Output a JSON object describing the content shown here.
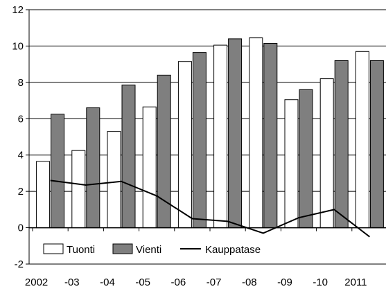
{
  "chart_data": {
    "type": "bar",
    "categories": [
      "2002",
      "-03",
      "-04",
      "-05",
      "-06",
      "-07",
      "-08",
      "-09",
      "-10",
      "2011"
    ],
    "series": [
      {
        "name": "Tuonti",
        "kind": "bar",
        "color": "#ffffff",
        "values": [
          3.65,
          4.25,
          5.3,
          6.65,
          9.15,
          10.05,
          10.45,
          7.05,
          8.2,
          9.7
        ]
      },
      {
        "name": "Vienti",
        "kind": "bar",
        "color": "#7f7f7f",
        "values": [
          6.25,
          6.6,
          7.85,
          8.4,
          9.65,
          10.4,
          10.15,
          7.6,
          9.2,
          9.2
        ]
      },
      {
        "name": "Kauppatase",
        "kind": "line",
        "color": "#000000",
        "values": [
          2.6,
          2.35,
          2.55,
          1.75,
          0.5,
          0.35,
          -0.3,
          0.55,
          1.0,
          -0.5
        ]
      }
    ],
    "title": "",
    "xlabel": "",
    "ylabel": "",
    "ylim": [
      -2,
      12
    ],
    "yticks": [
      "-2",
      "0",
      "2",
      "4",
      "6",
      "8",
      "10",
      "12"
    ],
    "grid": true,
    "legend_position": "bottom-left, inside plot"
  }
}
